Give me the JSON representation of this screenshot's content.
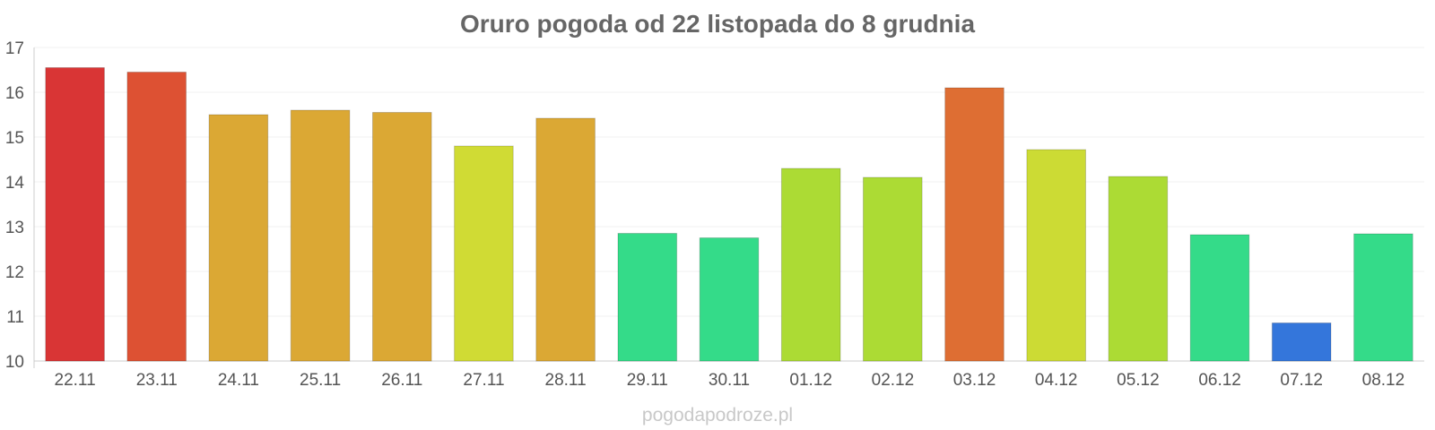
{
  "chart_data": {
    "type": "bar",
    "title": "Oruro pogoda od 22 listopada do 8 grudnia",
    "categories": [
      "22.11",
      "23.11",
      "24.11",
      "25.11",
      "26.11",
      "27.11",
      "28.11",
      "29.11",
      "30.11",
      "01.12",
      "02.12",
      "03.12",
      "04.12",
      "05.12",
      "06.12",
      "07.12",
      "08.12"
    ],
    "values": [
      16.55,
      16.45,
      15.5,
      15.6,
      15.55,
      14.8,
      15.42,
      12.85,
      12.75,
      14.3,
      14.1,
      16.1,
      14.72,
      14.12,
      12.82,
      10.85,
      12.84
    ],
    "colors": [
      "#d93535",
      "#dd5133",
      "#dba834",
      "#dba834",
      "#dba834",
      "#d0db34",
      "#dba834",
      "#34db89",
      "#34db89",
      "#acdb34",
      "#acdb34",
      "#de6e33",
      "#ccdb34",
      "#acdb34",
      "#34db89",
      "#3476db",
      "#34db89"
    ],
    "yticks": [
      "10",
      "11",
      "12",
      "13",
      "14",
      "15",
      "16",
      "17"
    ],
    "ylim": [
      10,
      17
    ],
    "xlabel": "",
    "ylabel": "",
    "grid": true,
    "legend": "none"
  },
  "footer": {
    "watermark": "pogodapodroze.pl"
  }
}
